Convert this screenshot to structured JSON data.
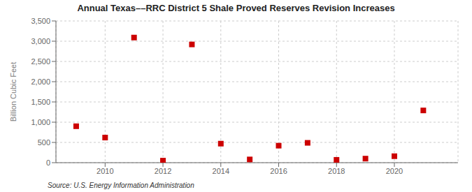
{
  "chart_data": {
    "type": "scatter",
    "title": "Annual Texas––RRC District 5 Shale Proved Reserves Revision Increases",
    "y_label": "Billion Cubic Feet",
    "annotation": "Source: U.S. Energy Information Administration",
    "x": [
      2009,
      2010,
      2011,
      2012,
      2013,
      2014,
      2015,
      2016,
      2017,
      2018,
      2019,
      2020,
      2021
    ],
    "values": [
      900,
      620,
      3090,
      50,
      2920,
      470,
      80,
      420,
      490,
      70,
      100,
      160,
      1290
    ],
    "color": "#cc0000",
    "marker": "square",
    "xlim": [
      2008.3,
      2022.2
    ],
    "xticks": [
      2010,
      2012,
      2014,
      2016,
      2018,
      2020
    ],
    "ylim": [
      0,
      3500
    ],
    "yticks": [
      0,
      500,
      {
        "value": 1000,
        "label": "1,000"
      },
      {
        "value": 1500,
        "label": "1,500"
      },
      {
        "value": 2000,
        "label": "2,000"
      },
      {
        "value": 2500,
        "label": "2,500"
      },
      {
        "value": 3000,
        "label": "3,000"
      },
      {
        "value": 3500,
        "label": "3,500"
      }
    ],
    "grid": true
  }
}
